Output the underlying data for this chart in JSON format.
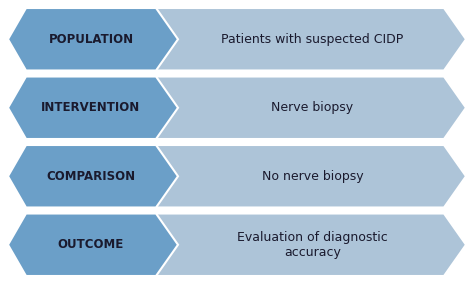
{
  "rows": [
    {
      "label": "POPULATION",
      "text": "Patients with suspected CIDP"
    },
    {
      "label": "INTERVENTION",
      "text": "Nerve biopsy"
    },
    {
      "label": "COMPARISON",
      "text": "No nerve biopsy"
    },
    {
      "label": "OUTCOME",
      "text": "Evaluation of diagnostic\naccuracy"
    }
  ],
  "dark_color": "#6b9fc8",
  "light_color": "#adc4d8",
  "text_color": "#1a1a2e",
  "background": "#ffffff",
  "label_fontsize": 8.5,
  "text_fontsize": 9.0
}
